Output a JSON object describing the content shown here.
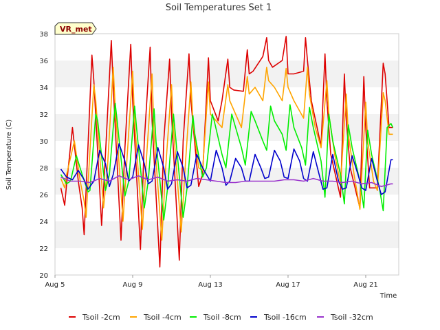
{
  "chart_data": {
    "type": "line",
    "title": "Soil Temperatures Set 1",
    "xlabel": "Time",
    "ylabel": "Soil Temperature (C)",
    "badge": "VR_met",
    "xlim": [
      5,
      22.7
    ],
    "ylim": [
      20,
      38
    ],
    "xticks": [
      {
        "value": 5,
        "label": "Aug 5"
      },
      {
        "value": 9,
        "label": "Aug 9"
      },
      {
        "value": 13,
        "label": "Aug 13"
      },
      {
        "value": 17,
        "label": "Aug 17"
      },
      {
        "value": 21,
        "label": "Aug 21"
      }
    ],
    "yticks": [
      20,
      22,
      24,
      26,
      28,
      30,
      32,
      34,
      36,
      38
    ],
    "grid": "horizontal bands",
    "legend_position": "bottom",
    "series": [
      {
        "name": "Tsoil -2cm",
        "color": "#dd0000",
        "x": [
          5.3,
          5.5,
          5.6,
          5.9,
          6.2,
          6.4,
          6.5,
          6.9,
          7.0,
          7.4,
          7.6,
          7.9,
          8.0,
          8.4,
          8.6,
          8.9,
          9.0,
          9.4,
          9.6,
          9.9,
          10.0,
          10.4,
          10.6,
          10.9,
          11.0,
          11.4,
          11.6,
          11.9,
          12.0,
          12.4,
          12.6,
          12.9,
          13.0,
          13.4,
          13.6,
          13.9,
          14.0,
          14.2,
          14.7,
          14.9,
          15.0,
          15.2,
          15.7,
          15.9,
          16.0,
          16.2,
          16.7,
          16.9,
          17.0,
          17.3,
          17.8,
          17.9,
          18.0,
          18.2,
          18.7,
          18.9,
          19.0,
          19.2,
          19.7,
          19.9,
          20.0,
          20.2,
          20.7,
          20.9,
          21.0,
          21.2,
          21.6,
          21.9,
          22.0,
          22.2,
          22.4
        ],
        "y": [
          26.5,
          25.2,
          26.8,
          31.0,
          27.0,
          25.0,
          23.0,
          36.4,
          34.5,
          23.7,
          29.0,
          37.5,
          34.0,
          22.6,
          29.5,
          37.2,
          33.0,
          21.9,
          30.0,
          37.0,
          31.5,
          20.6,
          30.0,
          36.1,
          32.0,
          21.1,
          30.0,
          36.5,
          33.0,
          26.6,
          27.5,
          36.2,
          33.0,
          31.5,
          33.0,
          36.1,
          34.0,
          33.8,
          33.7,
          36.8,
          35.0,
          35.2,
          36.3,
          37.7,
          36.0,
          35.5,
          36.0,
          37.8,
          35.0,
          35.0,
          35.2,
          37.7,
          36.0,
          33.0,
          29.6,
          36.5,
          33.0,
          29.0,
          25.8,
          35.0,
          31.5,
          28.0,
          25.0,
          34.8,
          31.0,
          26.5,
          26.5,
          35.8,
          35.0,
          31.0,
          31.0
        ]
      },
      {
        "name": "Tsoil -4cm",
        "color": "#ffa500",
        "x": [
          5.3,
          5.5,
          5.6,
          6.0,
          6.3,
          6.5,
          6.6,
          7.0,
          7.1,
          7.5,
          7.7,
          8.0,
          8.1,
          8.5,
          8.7,
          9.0,
          9.1,
          9.5,
          9.7,
          10.0,
          10.1,
          10.5,
          10.7,
          11.0,
          11.1,
          11.5,
          11.7,
          12.0,
          12.1,
          12.4,
          12.6,
          12.9,
          13.0,
          13.3,
          13.6,
          13.9,
          14.0,
          14.3,
          14.6,
          14.9,
          15.0,
          15.3,
          15.7,
          15.9,
          16.0,
          16.3,
          16.7,
          16.9,
          17.0,
          17.3,
          17.8,
          18.0,
          18.1,
          18.4,
          18.7,
          19.0,
          19.1,
          19.4,
          19.7,
          20.0,
          20.1,
          20.4,
          20.7,
          21.0,
          21.1,
          21.4,
          21.6,
          21.9,
          22.0,
          22.2,
          22.4
        ],
        "y": [
          27.2,
          26.5,
          27.5,
          30.0,
          27.0,
          25.5,
          24.3,
          34.2,
          33.0,
          25.0,
          28.0,
          35.5,
          32.5,
          24.0,
          28.5,
          35.2,
          31.5,
          23.4,
          28.5,
          35.0,
          30.5,
          22.6,
          28.0,
          34.2,
          31.0,
          23.2,
          28.0,
          34.4,
          31.5,
          28.0,
          27.8,
          34.4,
          32.0,
          31.5,
          31.0,
          34.2,
          33.0,
          32.0,
          31.0,
          34.8,
          33.5,
          34.0,
          33.0,
          35.5,
          34.5,
          34.0,
          33.0,
          35.4,
          34.0,
          33.0,
          31.7,
          35.5,
          33.5,
          31.0,
          29.5,
          34.5,
          32.0,
          29.0,
          26.8,
          33.5,
          30.5,
          27.5,
          24.9,
          32.9,
          30.0,
          27.0,
          26.3,
          33.6,
          33.0,
          30.5,
          30.5
        ]
      },
      {
        "name": "Tsoil -8cm",
        "color": "#00ee00",
        "x": [
          5.3,
          5.6,
          5.8,
          6.1,
          6.4,
          6.7,
          6.8,
          7.1,
          7.2,
          7.6,
          7.8,
          8.1,
          8.2,
          8.6,
          8.8,
          9.1,
          9.2,
          9.6,
          9.8,
          10.1,
          10.2,
          10.6,
          10.8,
          11.1,
          11.2,
          11.6,
          11.8,
          12.1,
          12.2,
          12.6,
          12.8,
          13.1,
          13.2,
          13.6,
          13.8,
          14.1,
          14.2,
          14.6,
          14.8,
          15.1,
          15.3,
          15.7,
          15.9,
          16.1,
          16.3,
          16.7,
          16.9,
          17.1,
          17.3,
          17.7,
          17.9,
          18.1,
          18.3,
          18.7,
          18.9,
          19.1,
          19.3,
          19.7,
          19.9,
          20.1,
          20.3,
          20.7,
          20.9,
          21.1,
          21.3,
          21.7,
          21.9,
          22.1,
          22.3,
          22.4
        ],
        "y": [
          27.5,
          26.8,
          27.0,
          28.9,
          27.5,
          26.2,
          26.3,
          32.0,
          31.5,
          26.3,
          27.5,
          32.8,
          31.5,
          25.9,
          27.0,
          32.6,
          31.0,
          25.0,
          27.0,
          32.4,
          30.0,
          24.1,
          26.5,
          32.0,
          30.5,
          24.3,
          26.5,
          31.9,
          30.5,
          27.3,
          28.0,
          32.0,
          31.5,
          29.0,
          28.0,
          32.0,
          31.5,
          29.5,
          28.2,
          32.2,
          31.5,
          30.0,
          29.3,
          32.6,
          31.5,
          30.5,
          29.3,
          32.7,
          31.0,
          29.5,
          28.2,
          32.5,
          31.0,
          28.5,
          25.8,
          32.0,
          30.0,
          27.5,
          25.3,
          31.2,
          29.5,
          27.0,
          25.0,
          30.8,
          29.0,
          26.5,
          24.8,
          31.0,
          31.3,
          31.0
        ]
      },
      {
        "name": "Tsoil -16cm",
        "color": "#0000cc",
        "x": [
          5.3,
          5.6,
          5.9,
          6.2,
          6.5,
          6.7,
          7.0,
          7.3,
          7.6,
          7.8,
          8.0,
          8.3,
          8.6,
          8.8,
          9.0,
          9.3,
          9.6,
          9.8,
          10.0,
          10.3,
          10.6,
          10.8,
          11.0,
          11.3,
          11.6,
          11.8,
          12.0,
          12.3,
          12.6,
          12.8,
          13.0,
          13.3,
          13.6,
          13.8,
          14.0,
          14.3,
          14.6,
          14.8,
          15.0,
          15.3,
          15.6,
          15.8,
          16.0,
          16.3,
          16.6,
          16.8,
          17.0,
          17.3,
          17.6,
          17.8,
          18.0,
          18.3,
          18.6,
          18.8,
          19.0,
          19.3,
          19.6,
          19.8,
          20.0,
          20.3,
          20.6,
          20.8,
          21.0,
          21.3,
          21.6,
          21.8,
          22.0,
          22.3,
          22.4
        ],
        "y": [
          27.9,
          27.3,
          27.1,
          27.8,
          27.1,
          26.4,
          27.0,
          29.3,
          28.3,
          26.6,
          27.5,
          29.8,
          28.5,
          27.0,
          27.3,
          29.7,
          28.3,
          26.8,
          27.0,
          29.5,
          28.0,
          26.4,
          26.8,
          29.2,
          28.0,
          26.5,
          26.7,
          29.0,
          28.0,
          27.5,
          27.0,
          29.3,
          28.0,
          26.7,
          27.0,
          28.7,
          28.0,
          27.0,
          27.0,
          29.0,
          28.0,
          27.2,
          27.3,
          29.3,
          28.5,
          27.3,
          27.2,
          29.4,
          28.5,
          27.2,
          27.0,
          29.2,
          27.5,
          26.4,
          26.5,
          29.0,
          27.0,
          26.4,
          26.5,
          28.9,
          27.5,
          26.5,
          26.3,
          28.7,
          27.0,
          26.0,
          26.2,
          28.6,
          28.6
        ]
      },
      {
        "name": "Tsoil -32cm",
        "color": "#9933cc",
        "x": [
          5.3,
          5.8,
          6.3,
          6.8,
          7.3,
          7.8,
          8.3,
          8.8,
          9.3,
          9.8,
          10.3,
          10.8,
          11.3,
          11.8,
          12.3,
          12.8,
          13.3,
          13.8,
          14.3,
          14.8,
          15.3,
          15.8,
          16.3,
          16.8,
          17.3,
          17.8,
          18.3,
          18.8,
          19.3,
          19.8,
          20.3,
          20.8,
          21.3,
          21.8,
          22.3,
          22.4
        ],
        "y": [
          27.3,
          27.0,
          27.0,
          26.9,
          27.2,
          27.0,
          27.4,
          27.1,
          27.4,
          27.1,
          27.3,
          27.0,
          27.1,
          27.0,
          27.2,
          27.1,
          27.0,
          26.9,
          26.9,
          27.0,
          27.0,
          27.0,
          27.0,
          27.1,
          27.1,
          27.0,
          27.2,
          27.0,
          27.0,
          26.9,
          27.0,
          26.8,
          26.9,
          26.6,
          26.8,
          26.8
        ]
      }
    ]
  }
}
